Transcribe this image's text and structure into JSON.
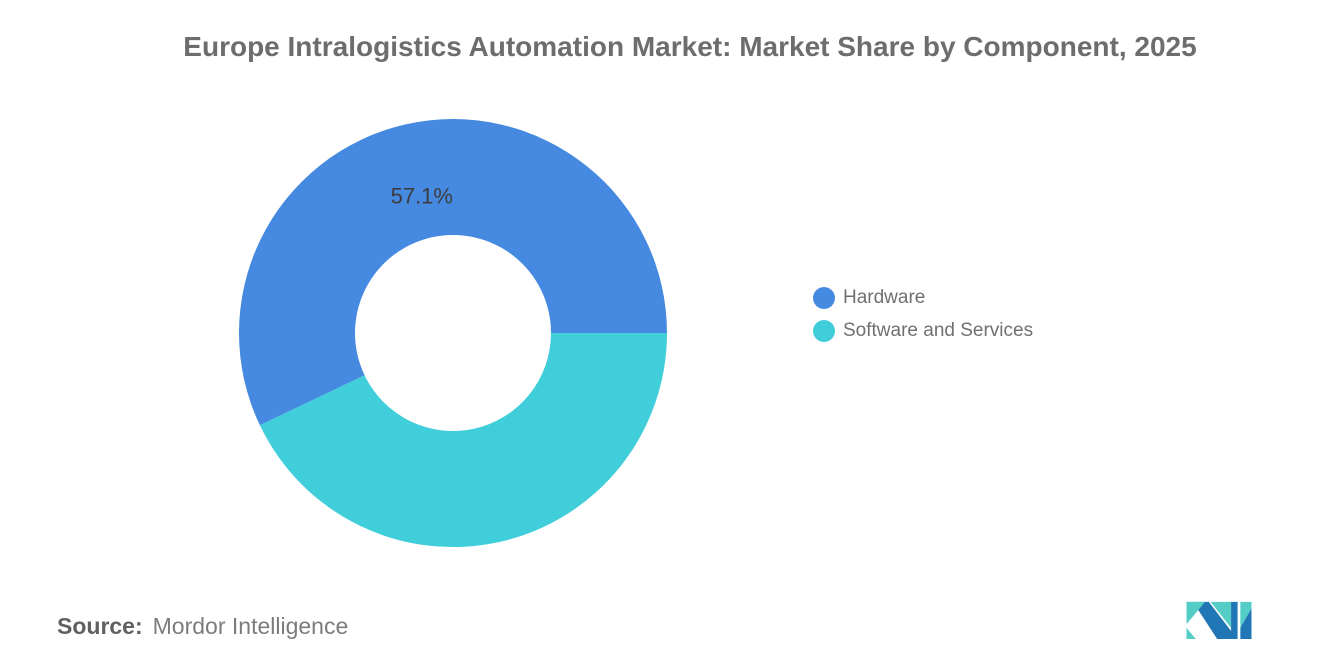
{
  "title": "Europe Intralogistics Automation Market: Market Share by Component, 2025",
  "chart_data": {
    "type": "pie",
    "subtype": "donut",
    "title": "Europe Intralogistics Automation Market: Market Share by Component, 2025",
    "categories": [
      "Hardware",
      "Software and Services"
    ],
    "values": [
      57.1,
      42.9
    ],
    "colors": [
      "#4689E0",
      "#3FCEDA"
    ],
    "data_labels": [
      "57.1%",
      ""
    ],
    "start_angle_deg": 0,
    "direction": "counterclockwise",
    "legend_position": "right",
    "hole": true
  },
  "legend": {
    "items": [
      {
        "label": "Hardware",
        "color": "#4689E0"
      },
      {
        "label": "Software and Services",
        "color": "#3FCEDA"
      }
    ]
  },
  "source": {
    "label": "Source:",
    "text": "Mordor Intelligence"
  },
  "logo": {
    "name": "mordor-intelligence-logo",
    "teal_color": "#54CDC6",
    "blue_color": "#2176B5"
  }
}
